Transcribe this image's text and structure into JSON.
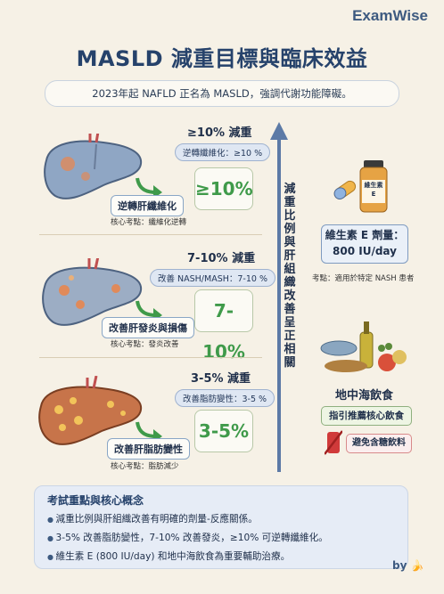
{
  "brand": "ExamWise",
  "title": "MASLD 減重目標與臨床效益",
  "subtitle": "2023年起 NAFLD 正名為 MASLD，強調代謝功能障礙。",
  "panels": [
    {
      "heading": "≥10% 減重",
      "pill": "逆轉纖維化：≥10 %",
      "percent": "≥10%",
      "tag": "逆轉肝纖維化",
      "note": "核心考點：纖維化逆轉",
      "liver_color": "#8fa6c4"
    },
    {
      "heading": "7-10% 減重",
      "pill": "改善 NASH/MASH：7-10 %",
      "percent": "7-10%",
      "tag": "改善肝發炎與損傷",
      "note": "核心考點：發炎改善",
      "liver_color": "#9cadc4"
    },
    {
      "heading": "3-5% 減重",
      "pill": "改善脂肪變性：3-5 %",
      "percent": "3-5%",
      "tag": "改善肝脂肪變性",
      "note": "核心考點：脂肪減少",
      "liver_color": "#c7744a"
    }
  ],
  "vertical_label": "減重比例與肝組織改善呈正相關",
  "vitamin": {
    "bottle_label": "維生素 E",
    "box_line1": "維生素 E 劑量：",
    "box_line2": "800 IU/day",
    "note": "考點：適用於特定 NASH 患者"
  },
  "mediterranean": {
    "heading": "地中海飲食",
    "tag": "指引推薦核心飲食",
    "avoid": "避免含糖飲料"
  },
  "summary": {
    "heading": "考試重點與核心概念",
    "items": [
      "減重比例與肝組織改善有明確的劑量-反應關係。",
      "3-5% 改善脂肪變性，7-10% 改善發炎，≥10% 可逆轉纖維化。",
      "維生素 E (800 IU/day) 和地中海飲食為重要輔助治療。"
    ]
  },
  "byline": "by",
  "colors": {
    "accent": "#26426b",
    "green": "#3f9a4a",
    "paper": "#f6f1e6"
  }
}
